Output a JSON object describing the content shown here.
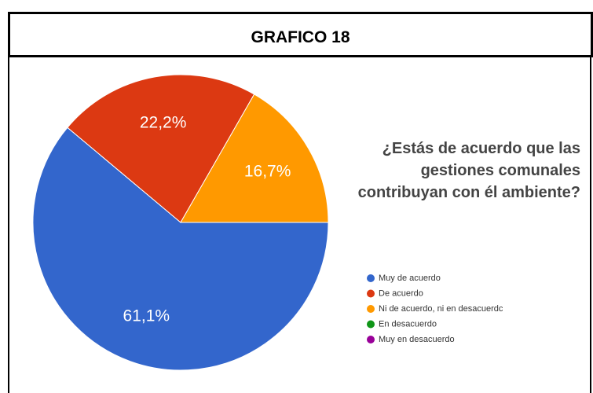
{
  "header": {
    "title": "GRAFICO 18"
  },
  "chart_data": {
    "type": "pie",
    "title": "¿Estás de acuerdo que las gestiones comunales contribuyan con él ambiente?",
    "categories": [
      "Muy de acuerdo",
      "De acuerdo",
      "Ni de acuerdo, ni en desacuerdc",
      "En desacuerdo",
      "Muy en desacuerdo"
    ],
    "values": [
      61.1,
      22.2,
      16.7,
      0,
      0
    ],
    "value_labels": [
      "61,1%",
      "22,2%",
      "16,7%",
      null,
      null
    ],
    "colors": [
      "#3366cc",
      "#dc3912",
      "#ff9900",
      "#109618",
      "#990099"
    ],
    "legend": "right"
  }
}
